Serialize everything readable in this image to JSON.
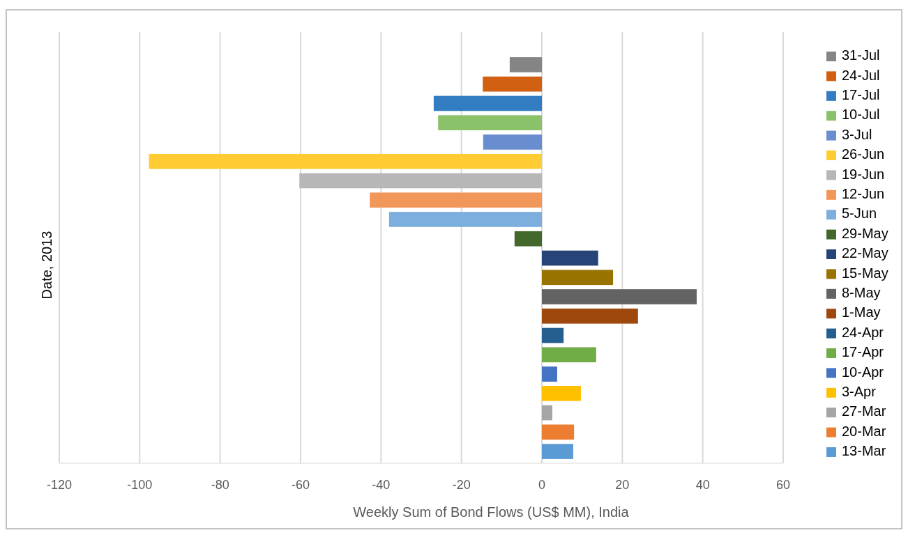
{
  "chart_data": {
    "type": "bar",
    "orientation": "horizontal",
    "xlabel": "Weekly Sum of Bond Flows (US$ MM), India",
    "ylabel": "Date, 2013",
    "categories": [
      null
    ],
    "series": [
      {
        "name": "31-Jul",
        "color": "#858585",
        "values": [
          -8.0
        ]
      },
      {
        "name": "24-Jul",
        "color": "#d16012",
        "values": [
          -14.7
        ]
      },
      {
        "name": "17-Jul",
        "color": "#327dc2",
        "values": [
          -26.9
        ]
      },
      {
        "name": "10-Jul",
        "color": "#8bc168",
        "values": [
          -25.8
        ]
      },
      {
        "name": "3-Jul",
        "color": "#698ed0",
        "values": [
          -14.6
        ]
      },
      {
        "name": "26-Jun",
        "color": "#ffcc33",
        "values": [
          -97.7
        ]
      },
      {
        "name": "19-Jun",
        "color": "#b7b7b7",
        "values": [
          -60.3
        ]
      },
      {
        "name": "12-Jun",
        "color": "#f1975a",
        "values": [
          -42.8
        ]
      },
      {
        "name": "5-Jun",
        "color": "#7cafdd",
        "values": [
          -38.0
        ]
      },
      {
        "name": "29-May",
        "color": "#43682b",
        "values": [
          -6.8
        ]
      },
      {
        "name": "22-May",
        "color": "#264478",
        "values": [
          14.0
        ]
      },
      {
        "name": "15-May",
        "color": "#997300",
        "values": [
          17.7
        ]
      },
      {
        "name": "8-May",
        "color": "#636363",
        "values": [
          38.5
        ]
      },
      {
        "name": "1-May",
        "color": "#9e480e",
        "values": [
          23.9
        ]
      },
      {
        "name": "24-Apr",
        "color": "#255e91",
        "values": [
          5.4
        ]
      },
      {
        "name": "17-Apr",
        "color": "#70ad47",
        "values": [
          13.5
        ]
      },
      {
        "name": "10-Apr",
        "color": "#4472c4",
        "values": [
          3.8
        ]
      },
      {
        "name": "3-Apr",
        "color": "#ffc000",
        "values": [
          9.7
        ]
      },
      {
        "name": "27-Mar",
        "color": "#a5a5a5",
        "values": [
          2.6
        ]
      },
      {
        "name": "20-Mar",
        "color": "#ed7d31",
        "values": [
          8.0
        ]
      },
      {
        "name": "13-Mar",
        "color": "#5b9bd5",
        "values": [
          7.8
        ]
      }
    ],
    "xlim": [
      -120,
      60
    ],
    "xticks": [
      -120,
      -100,
      -80,
      -60,
      -40,
      -20,
      0,
      20,
      40,
      60
    ],
    "grid": "x",
    "legend": "right"
  }
}
